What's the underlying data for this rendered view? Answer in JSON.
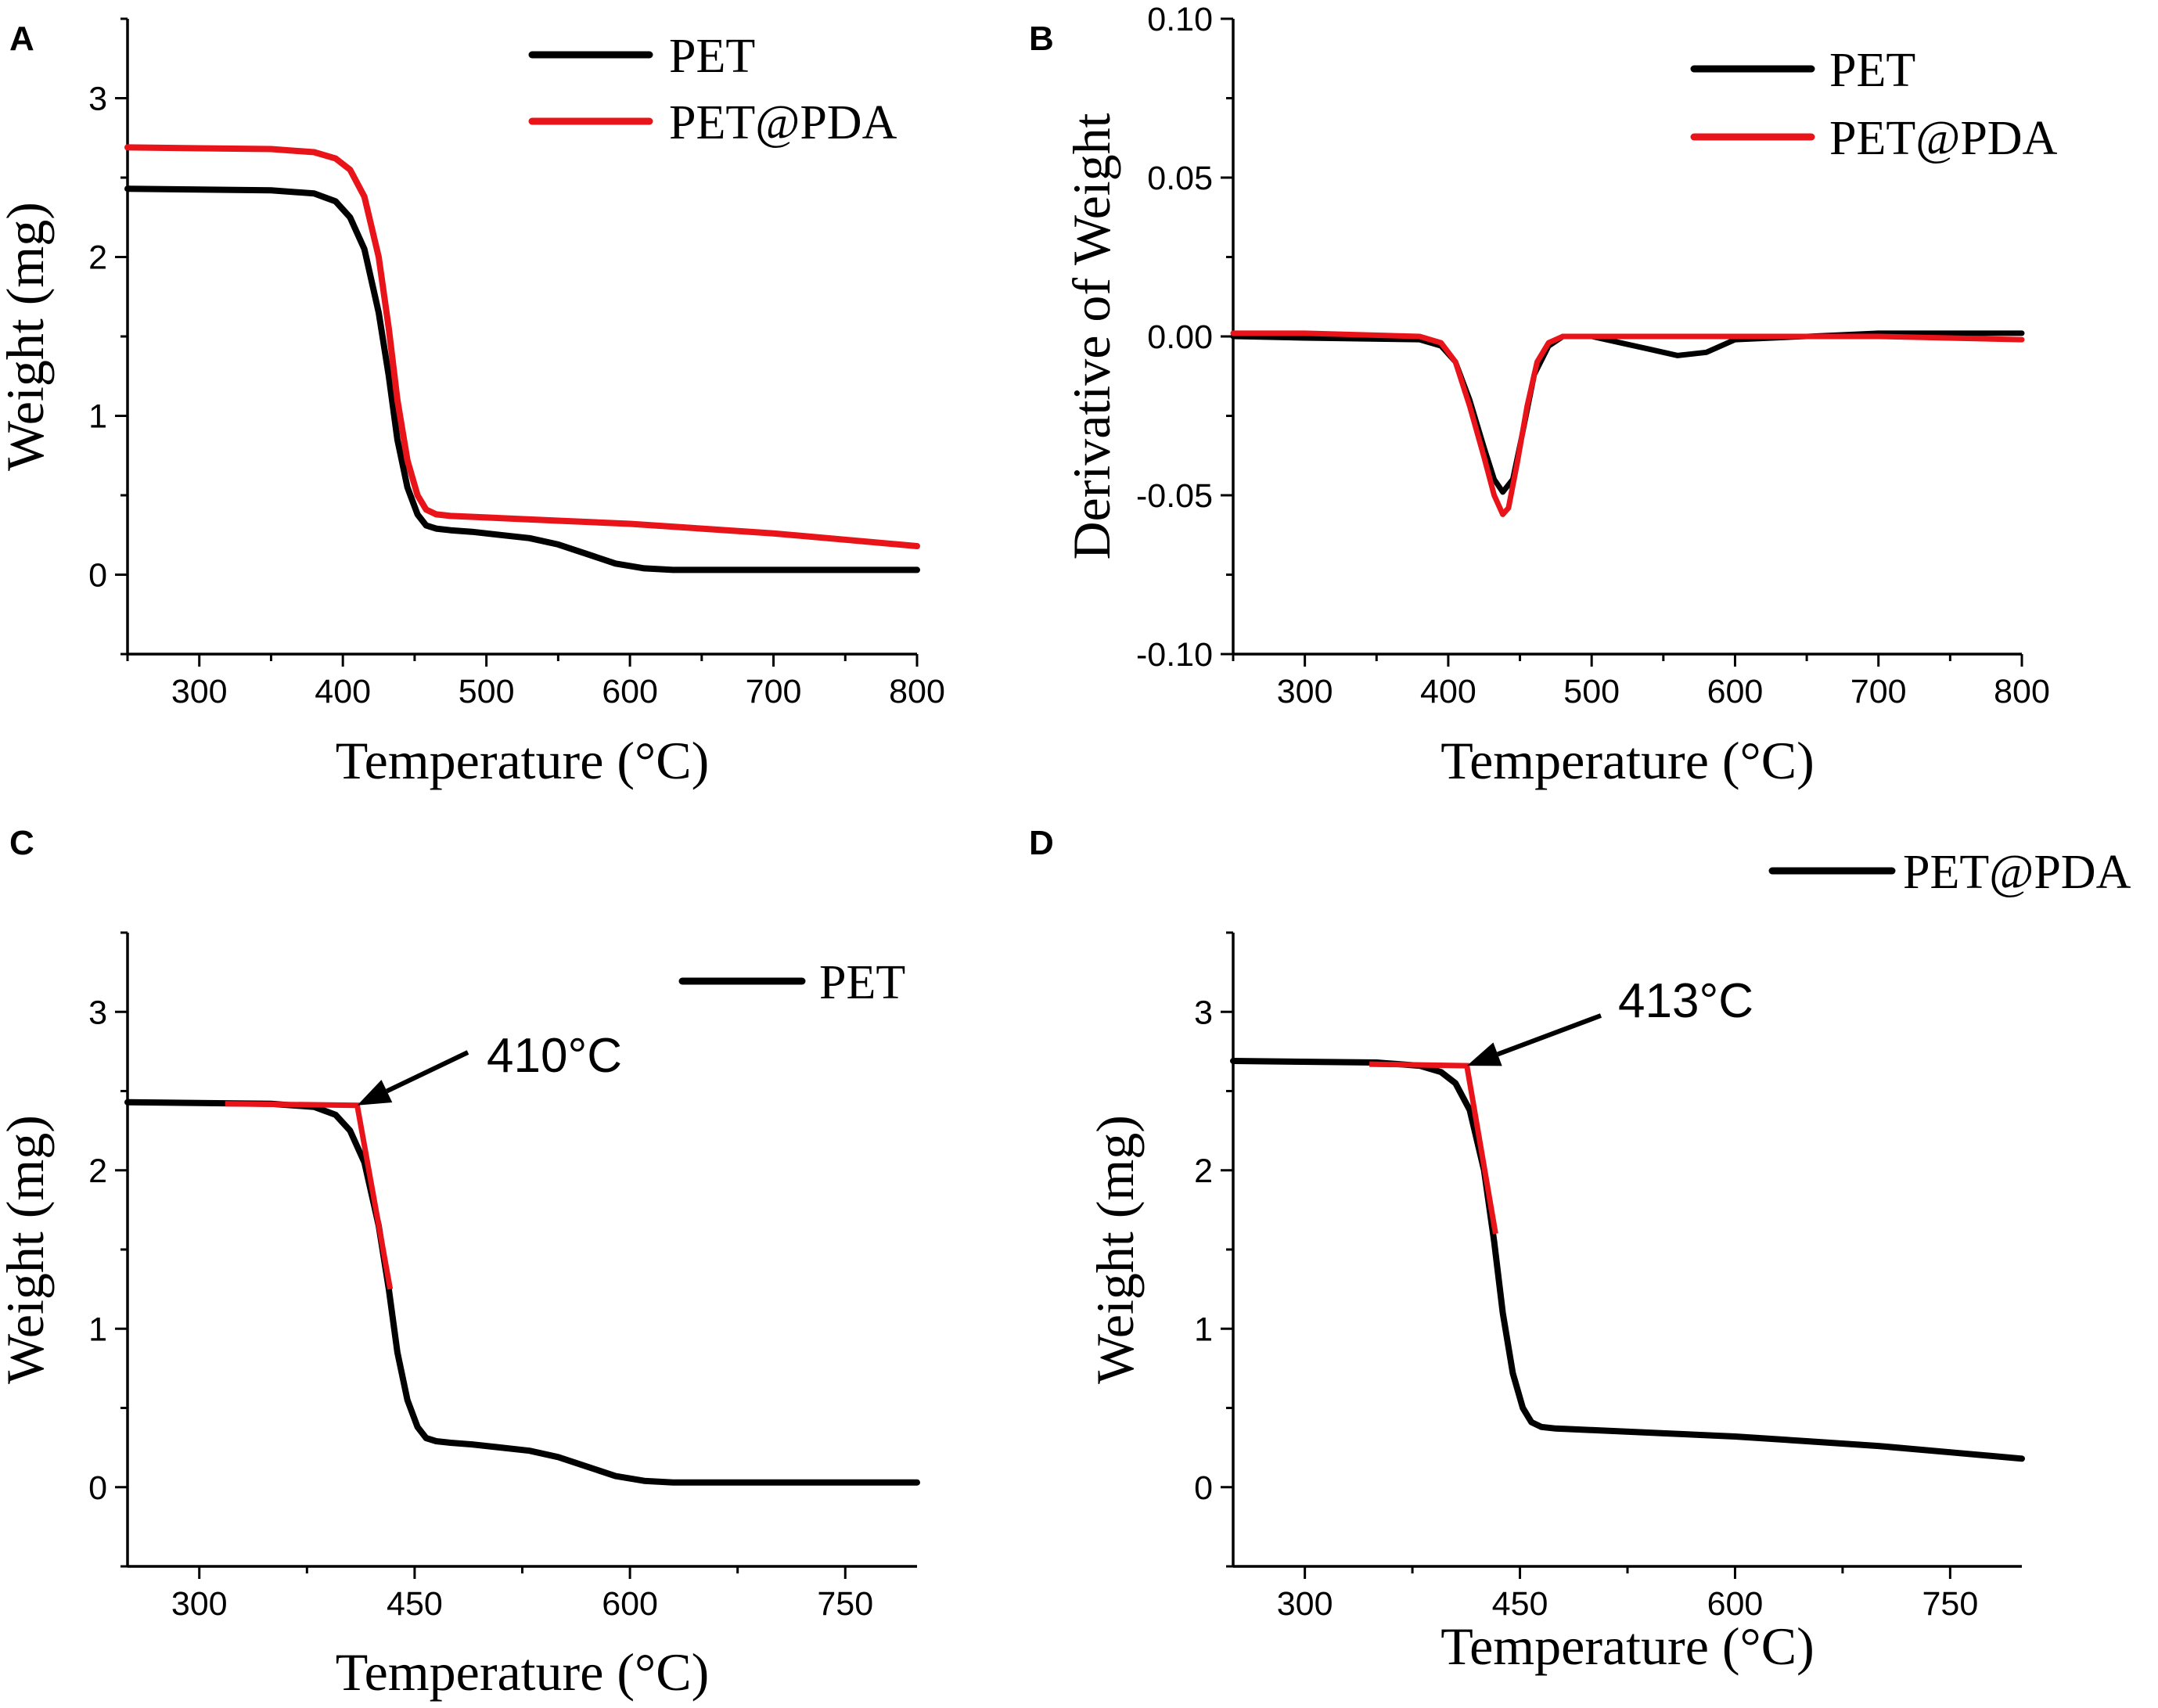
{
  "colors": {
    "pet": "#000000",
    "pet_pda": "#e8141a",
    "axis": "#000000"
  },
  "chart_data": [
    {
      "id": "A",
      "panel_label": "A",
      "type": "line",
      "xlabel": "Temperature (°C)",
      "ylabel": "Weight (mg)",
      "xlim": [
        250,
        800
      ],
      "ylim": [
        -0.5,
        3.5
      ],
      "xticks": [
        300,
        400,
        500,
        600,
        700,
        800
      ],
      "yticks": [
        0,
        1,
        2,
        3
      ],
      "legend": {
        "position": "top-right",
        "entries": [
          "PET",
          "PET@PDA"
        ]
      },
      "series": [
        {
          "name": "PET",
          "color": "#000000",
          "x": [
            250,
            350,
            380,
            395,
            405,
            415,
            425,
            432,
            438,
            445,
            452,
            458,
            465,
            475,
            490,
            510,
            530,
            550,
            570,
            590,
            610,
            630,
            700,
            800
          ],
          "y": [
            2.43,
            2.42,
            2.4,
            2.35,
            2.25,
            2.05,
            1.65,
            1.25,
            0.85,
            0.55,
            0.38,
            0.31,
            0.29,
            0.28,
            0.27,
            0.25,
            0.23,
            0.19,
            0.13,
            0.07,
            0.04,
            0.03,
            0.03,
            0.03
          ]
        },
        {
          "name": "PET@PDA",
          "color": "#e8141a",
          "x": [
            250,
            350,
            380,
            395,
            405,
            415,
            425,
            432,
            438,
            445,
            452,
            458,
            465,
            475,
            500,
            550,
            600,
            650,
            700,
            750,
            800
          ],
          "y": [
            2.69,
            2.68,
            2.66,
            2.62,
            2.55,
            2.38,
            2.0,
            1.55,
            1.1,
            0.72,
            0.5,
            0.41,
            0.38,
            0.37,
            0.36,
            0.34,
            0.32,
            0.29,
            0.26,
            0.22,
            0.18
          ]
        }
      ]
    },
    {
      "id": "B",
      "panel_label": "B",
      "type": "line",
      "xlabel": "Temperature (°C)",
      "ylabel": "Derivative of Weight",
      "xlim": [
        250,
        800
      ],
      "ylim": [
        -0.1,
        0.1
      ],
      "xticks": [
        300,
        400,
        500,
        600,
        700,
        800
      ],
      "yticks": [
        -0.1,
        -0.05,
        0.0,
        0.05,
        0.1
      ],
      "ytick_labels": [
        "-0.10",
        "-0.05",
        "0.00",
        "0.05",
        "0.10"
      ],
      "legend": {
        "position": "top-right",
        "entries": [
          "PET",
          "PET@PDA"
        ]
      },
      "series": [
        {
          "name": "PET",
          "color": "#000000",
          "x": [
            250,
            300,
            380,
            395,
            405,
            415,
            425,
            432,
            438,
            445,
            452,
            460,
            470,
            480,
            500,
            540,
            560,
            580,
            600,
            650,
            700,
            800
          ],
          "y": [
            0.0,
            -0.0005,
            -0.001,
            -0.003,
            -0.008,
            -0.02,
            -0.035,
            -0.045,
            -0.049,
            -0.045,
            -0.03,
            -0.012,
            -0.003,
            0.0,
            0.0,
            -0.004,
            -0.006,
            -0.005,
            -0.001,
            0.0,
            0.001,
            0.001
          ]
        },
        {
          "name": "PET@PDA",
          "color": "#e8141a",
          "x": [
            250,
            300,
            380,
            395,
            405,
            415,
            425,
            432,
            438,
            442,
            448,
            455,
            462,
            470,
            480,
            500,
            600,
            700,
            800
          ],
          "y": [
            0.001,
            0.001,
            0.0,
            -0.002,
            -0.008,
            -0.022,
            -0.038,
            -0.05,
            -0.056,
            -0.054,
            -0.04,
            -0.022,
            -0.008,
            -0.002,
            0.0,
            0.0,
            0.0,
            0.0,
            -0.001
          ]
        }
      ]
    },
    {
      "id": "C",
      "panel_label": "C",
      "type": "line",
      "xlabel": "Temperature (°C)",
      "ylabel": "Weight (mg)",
      "xlim": [
        250,
        800
      ],
      "ylim": [
        -0.5,
        3.5
      ],
      "xticks": [
        300,
        450,
        600,
        750
      ],
      "yticks": [
        0,
        1,
        2,
        3
      ],
      "legend": {
        "position": "top-right",
        "entries": [
          "PET"
        ]
      },
      "annotation": {
        "text": "410°C",
        "x": 410,
        "y": 2.41
      },
      "onset_tangent": {
        "color": "#e8141a",
        "x": [
          318,
          410,
          433
        ],
        "y": [
          2.42,
          2.41,
          1.25
        ]
      },
      "series": [
        {
          "name": "PET",
          "color": "#000000",
          "x": [
            250,
            350,
            380,
            395,
            405,
            415,
            425,
            432,
            438,
            445,
            452,
            458,
            465,
            475,
            490,
            510,
            530,
            550,
            570,
            590,
            610,
            630,
            700,
            800
          ],
          "y": [
            2.43,
            2.42,
            2.4,
            2.35,
            2.25,
            2.05,
            1.65,
            1.25,
            0.85,
            0.55,
            0.38,
            0.31,
            0.29,
            0.28,
            0.27,
            0.25,
            0.23,
            0.19,
            0.13,
            0.07,
            0.04,
            0.03,
            0.03,
            0.03
          ]
        }
      ]
    },
    {
      "id": "D",
      "panel_label": "D",
      "type": "line",
      "xlabel": "Temperature (°C)",
      "ylabel": "Weight (mg)",
      "xlim": [
        250,
        800
      ],
      "ylim": [
        -0.5,
        3.5
      ],
      "xticks": [
        300,
        450,
        600,
        750
      ],
      "yticks": [
        0,
        1,
        2,
        3
      ],
      "legend": {
        "position": "top-right",
        "entries": [
          "PET@PDA"
        ]
      },
      "annotation": {
        "text": "413°C",
        "x": 413,
        "y": 2.66
      },
      "onset_tangent": {
        "color": "#e8141a",
        "x": [
          345,
          413,
          433
        ],
        "y": [
          2.67,
          2.66,
          1.6
        ]
      },
      "series": [
        {
          "name": "PET@PDA",
          "color": "#000000",
          "x": [
            250,
            350,
            380,
            395,
            405,
            415,
            425,
            432,
            438,
            445,
            452,
            458,
            465,
            475,
            500,
            550,
            600,
            650,
            700,
            750,
            800
          ],
          "y": [
            2.69,
            2.68,
            2.66,
            2.62,
            2.55,
            2.38,
            2.0,
            1.55,
            1.1,
            0.72,
            0.5,
            0.41,
            0.38,
            0.37,
            0.36,
            0.34,
            0.32,
            0.29,
            0.26,
            0.22,
            0.18
          ]
        }
      ]
    }
  ]
}
